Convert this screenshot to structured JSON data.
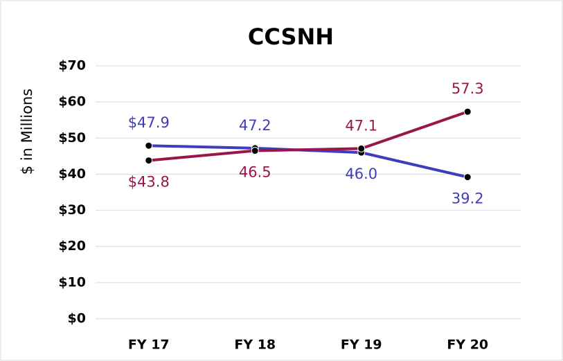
{
  "chart_data": {
    "type": "line",
    "title": "CCSNH",
    "y_label": "$ in Millions",
    "categories": [
      "FY 17",
      "FY 18",
      "FY 19",
      "FY 20"
    ],
    "series": [
      {
        "color": "#3d3dbd",
        "values": [
          47.9,
          47.2,
          46.0,
          39.2
        ],
        "value_labels": [
          "$47.9",
          "47.2",
          "46.0",
          "39.2"
        ]
      },
      {
        "color": "#99154b",
        "values": [
          43.8,
          46.5,
          47.1,
          57.3
        ],
        "value_labels": [
          "$43.8",
          "46.5",
          "47.1",
          "57.3"
        ]
      }
    ],
    "ylim": [
      0,
      70
    ],
    "yticks": [
      {
        "value": 0,
        "label": "$0"
      },
      {
        "value": 10,
        "label": "$10"
      },
      {
        "value": 20,
        "label": "$20"
      },
      {
        "value": 30,
        "label": "$30"
      },
      {
        "value": 40,
        "label": "$40"
      },
      {
        "value": 50,
        "label": "$50"
      },
      {
        "value": 60,
        "label": "$60"
      },
      {
        "value": 70,
        "label": "$70"
      }
    ],
    "grid": true
  }
}
